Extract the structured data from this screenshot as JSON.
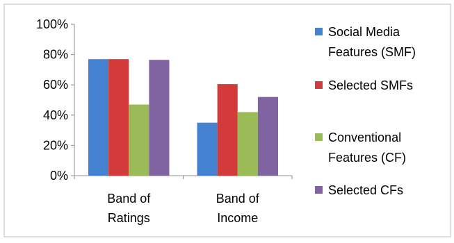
{
  "chart_data": {
    "type": "bar",
    "categories": [
      [
        "Band of",
        "Ratings"
      ],
      [
        "Band of",
        "Income"
      ]
    ],
    "series": [
      {
        "name": [
          "Social Media",
          "Features (SMF)"
        ],
        "values": [
          77,
          35
        ],
        "color": "#4682d2"
      },
      {
        "name": [
          "Selected SMFs"
        ],
        "values": [
          77,
          60.5
        ],
        "color": "#d33b3b"
      },
      {
        "name": [
          "Conventional",
          "Features (CF)"
        ],
        "values": [
          47,
          42
        ],
        "color": "#9bbb59"
      },
      {
        "name": [
          "Selected CFs"
        ],
        "values": [
          76.5,
          52
        ],
        "color": "#8064a2"
      }
    ],
    "yticks": [
      "0%",
      "20%",
      "40%",
      "60%",
      "80%",
      "100%"
    ],
    "ylim": [
      0,
      100
    ],
    "grid": false,
    "legend_position": "right"
  }
}
